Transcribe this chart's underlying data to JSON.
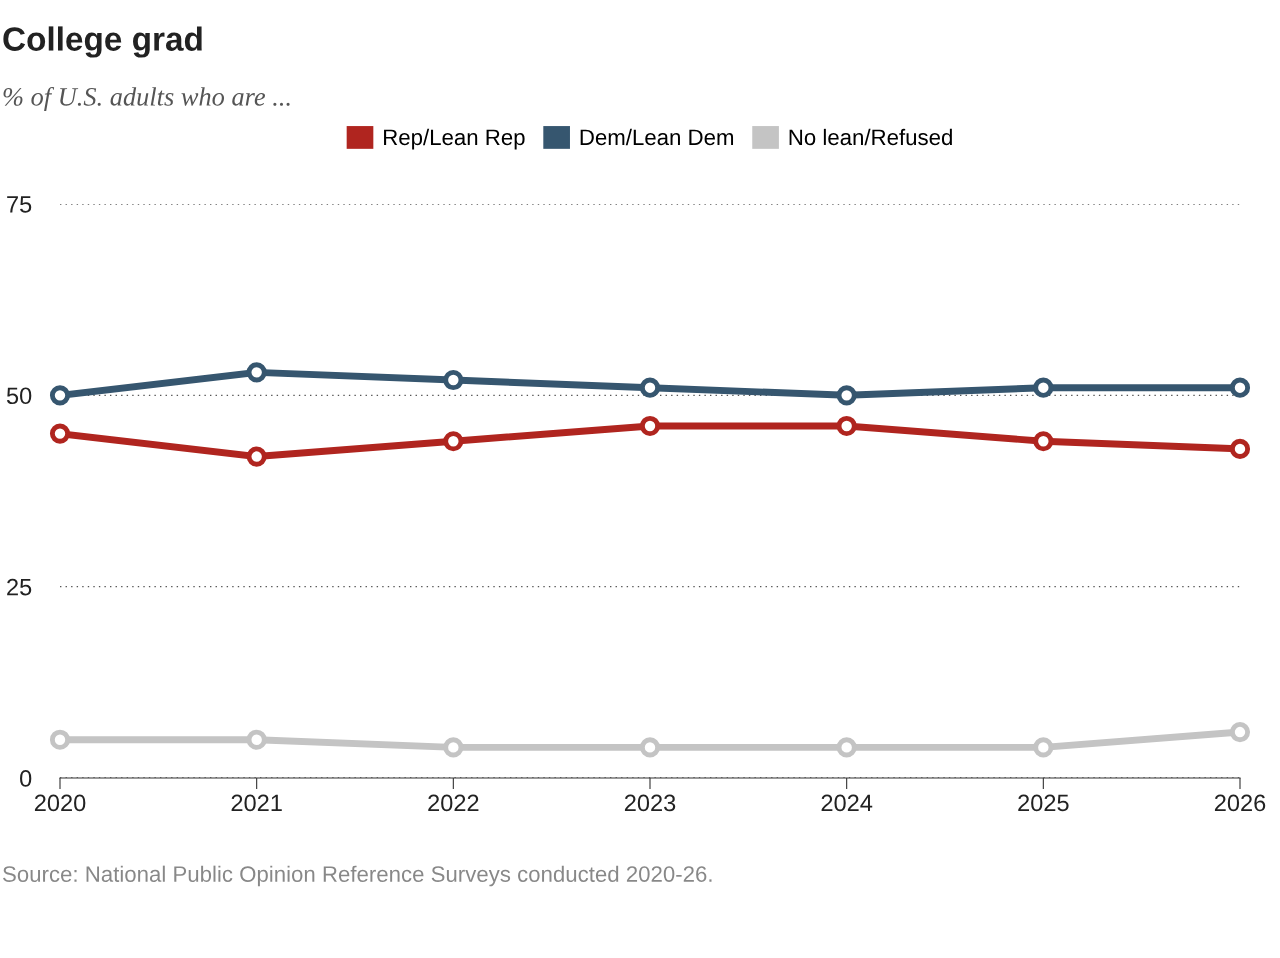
{
  "chart_data": {
    "type": "line",
    "title": "College grad",
    "subtitle": "% of U.S. adults who are ...",
    "categories": [
      "2020",
      "2021",
      "2022",
      "2023",
      "2024",
      "2025",
      "2026"
    ],
    "series": [
      {
        "name": "Rep/Lean Rep",
        "color": "#b0251f",
        "values": [
          45,
          42,
          44,
          46,
          46,
          44,
          43
        ]
      },
      {
        "name": "Dem/Lean Dem",
        "color": "#36566f",
        "values": [
          50,
          53,
          52,
          51,
          50,
          51,
          51
        ]
      },
      {
        "name": "No lean/Refused",
        "color": "#c4c4c4",
        "values": [
          5,
          5,
          4,
          4,
          4,
          4,
          6
        ]
      }
    ],
    "ylim": [
      0,
      75
    ],
    "yticks": [
      0,
      25,
      50,
      75
    ],
    "grid": "y",
    "legend": "top",
    "marker": "circle",
    "line_style": "solid",
    "annotations": [
      "Source: National Public Opinion Reference Surveys conducted 2020-26."
    ]
  }
}
